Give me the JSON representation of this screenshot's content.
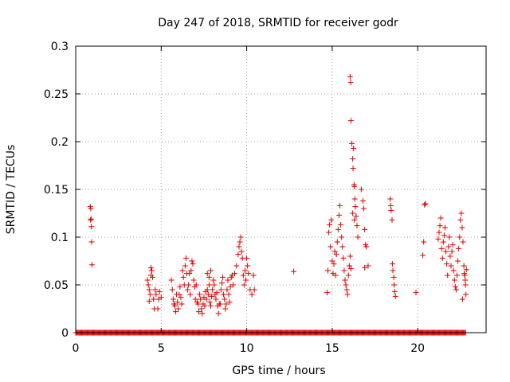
{
  "chart_data": {
    "type": "scatter",
    "title": "Day 247 of 2018, SRMTID for receiver godr",
    "xlabel": "GPS time / hours",
    "ylabel": "SRMTID / TECUs",
    "xlim": [
      0,
      24
    ],
    "ylim": [
      0,
      0.3
    ],
    "xticks": [
      0,
      5,
      10,
      15,
      20
    ],
    "xtick_labels": [
      "0",
      "5",
      "10",
      "15",
      "20"
    ],
    "yticks": [
      0,
      0.05,
      0.1,
      0.15,
      0.2,
      0.25,
      0.3
    ],
    "ytick_labels": [
      "0",
      "0.05",
      "0.1",
      "0.15",
      "0.2",
      "0.25",
      "0.3"
    ],
    "grid": true,
    "marker": "+",
    "color": "#e00000",
    "baseline_zero_range": [
      0,
      22.8
    ],
    "series": [
      {
        "name": "SRMTID",
        "points": [
          [
            0.85,
            0.132
          ],
          [
            0.88,
            0.13
          ],
          [
            0.9,
            0.119
          ],
          [
            0.92,
            0.111
          ],
          [
            0.93,
            0.095
          ],
          [
            0.95,
            0.071
          ],
          [
            0.87,
            0.118
          ],
          [
            4.2,
            0.055
          ],
          [
            4.25,
            0.05
          ],
          [
            4.3,
            0.045
          ],
          [
            4.35,
            0.04
          ],
          [
            4.4,
            0.068
          ],
          [
            4.45,
            0.065
          ],
          [
            4.5,
            0.058
          ],
          [
            4.55,
            0.035
          ],
          [
            4.6,
            0.025
          ],
          [
            4.65,
            0.045
          ],
          [
            4.7,
            0.04
          ],
          [
            4.8,
            0.025
          ],
          [
            4.85,
            0.035
          ],
          [
            4.9,
            0.043
          ],
          [
            5.0,
            0.037
          ],
          [
            4.3,
            0.033
          ],
          [
            4.4,
            0.06
          ],
          [
            5.6,
            0.055
          ],
          [
            5.65,
            0.045
          ],
          [
            5.7,
            0.035
          ],
          [
            5.75,
            0.03
          ],
          [
            5.8,
            0.028
          ],
          [
            5.85,
            0.022
          ],
          [
            5.9,
            0.04
          ],
          [
            5.95,
            0.032
          ],
          [
            6.0,
            0.025
          ],
          [
            6.05,
            0.04
          ],
          [
            6.1,
            0.048
          ],
          [
            6.15,
            0.037
          ],
          [
            6.2,
            0.03
          ],
          [
            6.25,
            0.065
          ],
          [
            6.3,
            0.058
          ],
          [
            6.35,
            0.05
          ],
          [
            6.4,
            0.07
          ],
          [
            6.45,
            0.078
          ],
          [
            6.5,
            0.062
          ],
          [
            6.55,
            0.045
          ],
          [
            6.6,
            0.05
          ],
          [
            6.65,
            0.062
          ],
          [
            6.7,
            0.04
          ],
          [
            6.75,
            0.065
          ],
          [
            6.8,
            0.075
          ],
          [
            6.85,
            0.072
          ],
          [
            6.9,
            0.055
          ],
          [
            6.95,
            0.048
          ],
          [
            7.0,
            0.035
          ],
          [
            7.05,
            0.05
          ],
          [
            7.1,
            0.032
          ],
          [
            7.15,
            0.03
          ],
          [
            7.2,
            0.022
          ],
          [
            7.25,
            0.04
          ],
          [
            7.3,
            0.035
          ],
          [
            7.35,
            0.025
          ],
          [
            7.4,
            0.02
          ],
          [
            7.45,
            0.03
          ],
          [
            7.5,
            0.037
          ],
          [
            7.55,
            0.028
          ],
          [
            7.6,
            0.043
          ],
          [
            7.65,
            0.035
          ],
          [
            7.7,
            0.045
          ],
          [
            7.75,
            0.04
          ],
          [
            7.8,
            0.05
          ],
          [
            7.85,
            0.032
          ],
          [
            7.9,
            0.028
          ],
          [
            7.95,
            0.038
          ],
          [
            8.0,
            0.045
          ],
          [
            8.05,
            0.055
          ],
          [
            8.1,
            0.05
          ],
          [
            8.15,
            0.04
          ],
          [
            8.2,
            0.035
          ],
          [
            8.25,
            0.042
          ],
          [
            8.3,
            0.028
          ],
          [
            8.35,
            0.02
          ],
          [
            8.4,
            0.03
          ],
          [
            7.7,
            0.062
          ],
          [
            7.8,
            0.058
          ],
          [
            7.9,
            0.065
          ],
          [
            8.45,
            0.03
          ],
          [
            8.5,
            0.045
          ],
          [
            8.55,
            0.052
          ],
          [
            8.6,
            0.058
          ],
          [
            8.65,
            0.04
          ],
          [
            8.7,
            0.035
          ],
          [
            8.75,
            0.025
          ],
          [
            8.8,
            0.03
          ],
          [
            8.85,
            0.045
          ],
          [
            8.9,
            0.055
          ],
          [
            8.95,
            0.04
          ],
          [
            9.0,
            0.032
          ],
          [
            9.05,
            0.048
          ],
          [
            9.1,
            0.058
          ],
          [
            9.15,
            0.06
          ],
          [
            9.2,
            0.05
          ],
          [
            9.3,
            0.062
          ],
          [
            9.4,
            0.07
          ],
          [
            9.5,
            0.082
          ],
          [
            9.55,
            0.09
          ],
          [
            9.6,
            0.095
          ],
          [
            9.65,
            0.1
          ],
          [
            9.7,
            0.085
          ],
          [
            9.75,
            0.078
          ],
          [
            9.8,
            0.06
          ],
          [
            9.85,
            0.05
          ],
          [
            9.9,
            0.065
          ],
          [
            9.95,
            0.055
          ],
          [
            10.0,
            0.078
          ],
          [
            10.05,
            0.07
          ],
          [
            10.1,
            0.062
          ],
          [
            10.2,
            0.045
          ],
          [
            10.3,
            0.04
          ],
          [
            10.4,
            0.06
          ],
          [
            10.45,
            0.045
          ],
          [
            12.75,
            0.064
          ],
          [
            14.7,
            0.042
          ],
          [
            14.75,
            0.065
          ],
          [
            14.8,
            0.105
          ],
          [
            14.85,
            0.113
          ],
          [
            14.9,
            0.09
          ],
          [
            14.95,
            0.118
          ],
          [
            15.0,
            0.075
          ],
          [
            15.05,
            0.062
          ],
          [
            15.1,
            0.072
          ],
          [
            15.15,
            0.085
          ],
          [
            15.2,
            0.06
          ],
          [
            15.25,
            0.082
          ],
          [
            15.3,
            0.095
          ],
          [
            15.35,
            0.108
          ],
          [
            15.4,
            0.123
          ],
          [
            15.45,
            0.133
          ],
          [
            15.5,
            0.113
          ],
          [
            15.55,
            0.1
          ],
          [
            15.6,
            0.09
          ],
          [
            15.65,
            0.078
          ],
          [
            15.7,
            0.065
          ],
          [
            15.75,
            0.055
          ],
          [
            15.8,
            0.05
          ],
          [
            15.85,
            0.045
          ],
          [
            15.9,
            0.04
          ],
          [
            15.95,
            0.06
          ],
          [
            16.0,
            0.07
          ],
          [
            16.05,
            0.08
          ],
          [
            16.1,
            0.067
          ],
          [
            16.05,
            0.268
          ],
          [
            16.08,
            0.262
          ],
          [
            16.1,
            0.222
          ],
          [
            16.15,
            0.198
          ],
          [
            16.2,
            0.182
          ],
          [
            16.22,
            0.172
          ],
          [
            16.25,
            0.193
          ],
          [
            16.28,
            0.155
          ],
          [
            16.3,
            0.153
          ],
          [
            16.32,
            0.14
          ],
          [
            16.35,
            0.132
          ],
          [
            16.4,
            0.122
          ],
          [
            16.45,
            0.112
          ],
          [
            16.5,
            0.1
          ],
          [
            16.3,
            0.118
          ],
          [
            16.2,
            0.125
          ],
          [
            16.7,
            0.15
          ],
          [
            16.8,
            0.138
          ],
          [
            16.85,
            0.13
          ],
          [
            16.9,
            0.108
          ],
          [
            16.95,
            0.092
          ],
          [
            17.0,
            0.09
          ],
          [
            17.1,
            0.07
          ],
          [
            16.9,
            0.068
          ],
          [
            18.4,
            0.14
          ],
          [
            18.42,
            0.133
          ],
          [
            18.45,
            0.128
          ],
          [
            18.5,
            0.118
          ],
          [
            18.52,
            0.072
          ],
          [
            18.55,
            0.065
          ],
          [
            18.6,
            0.058
          ],
          [
            18.62,
            0.05
          ],
          [
            18.65,
            0.043
          ],
          [
            18.7,
            0.038
          ],
          [
            19.9,
            0.042
          ],
          [
            20.3,
            0.081
          ],
          [
            20.35,
            0.095
          ],
          [
            20.4,
            0.134
          ],
          [
            20.45,
            0.135
          ],
          [
            21.2,
            0.098
          ],
          [
            21.25,
            0.105
          ],
          [
            21.3,
            0.112
          ],
          [
            21.35,
            0.12
          ],
          [
            21.4,
            0.088
          ],
          [
            21.45,
            0.078
          ],
          [
            21.5,
            0.095
          ],
          [
            21.55,
            0.102
          ],
          [
            21.6,
            0.11
          ],
          [
            21.65,
            0.085
          ],
          [
            21.7,
            0.072
          ],
          [
            21.75,
            0.06
          ],
          [
            21.8,
            0.09
          ],
          [
            21.85,
            0.1
          ],
          [
            21.9,
            0.08
          ],
          [
            21.95,
            0.07
          ],
          [
            22.0,
            0.085
          ],
          [
            22.05,
            0.092
          ],
          [
            22.1,
            0.065
          ],
          [
            22.15,
            0.055
          ],
          [
            22.2,
            0.048
          ],
          [
            22.25,
            0.045
          ],
          [
            22.3,
            0.06
          ],
          [
            22.35,
            0.075
          ],
          [
            22.4,
            0.088
          ],
          [
            22.45,
            0.1
          ],
          [
            22.5,
            0.118
          ],
          [
            22.55,
            0.125
          ],
          [
            22.6,
            0.11
          ],
          [
            22.65,
            0.095
          ],
          [
            22.7,
            0.07
          ],
          [
            22.72,
            0.062
          ],
          [
            22.75,
            0.06
          ],
          [
            22.78,
            0.055
          ],
          [
            22.8,
            0.05
          ],
          [
            22.82,
            0.04
          ],
          [
            22.85,
            0.066
          ],
          [
            22.62,
            0.035
          ]
        ]
      }
    ]
  }
}
